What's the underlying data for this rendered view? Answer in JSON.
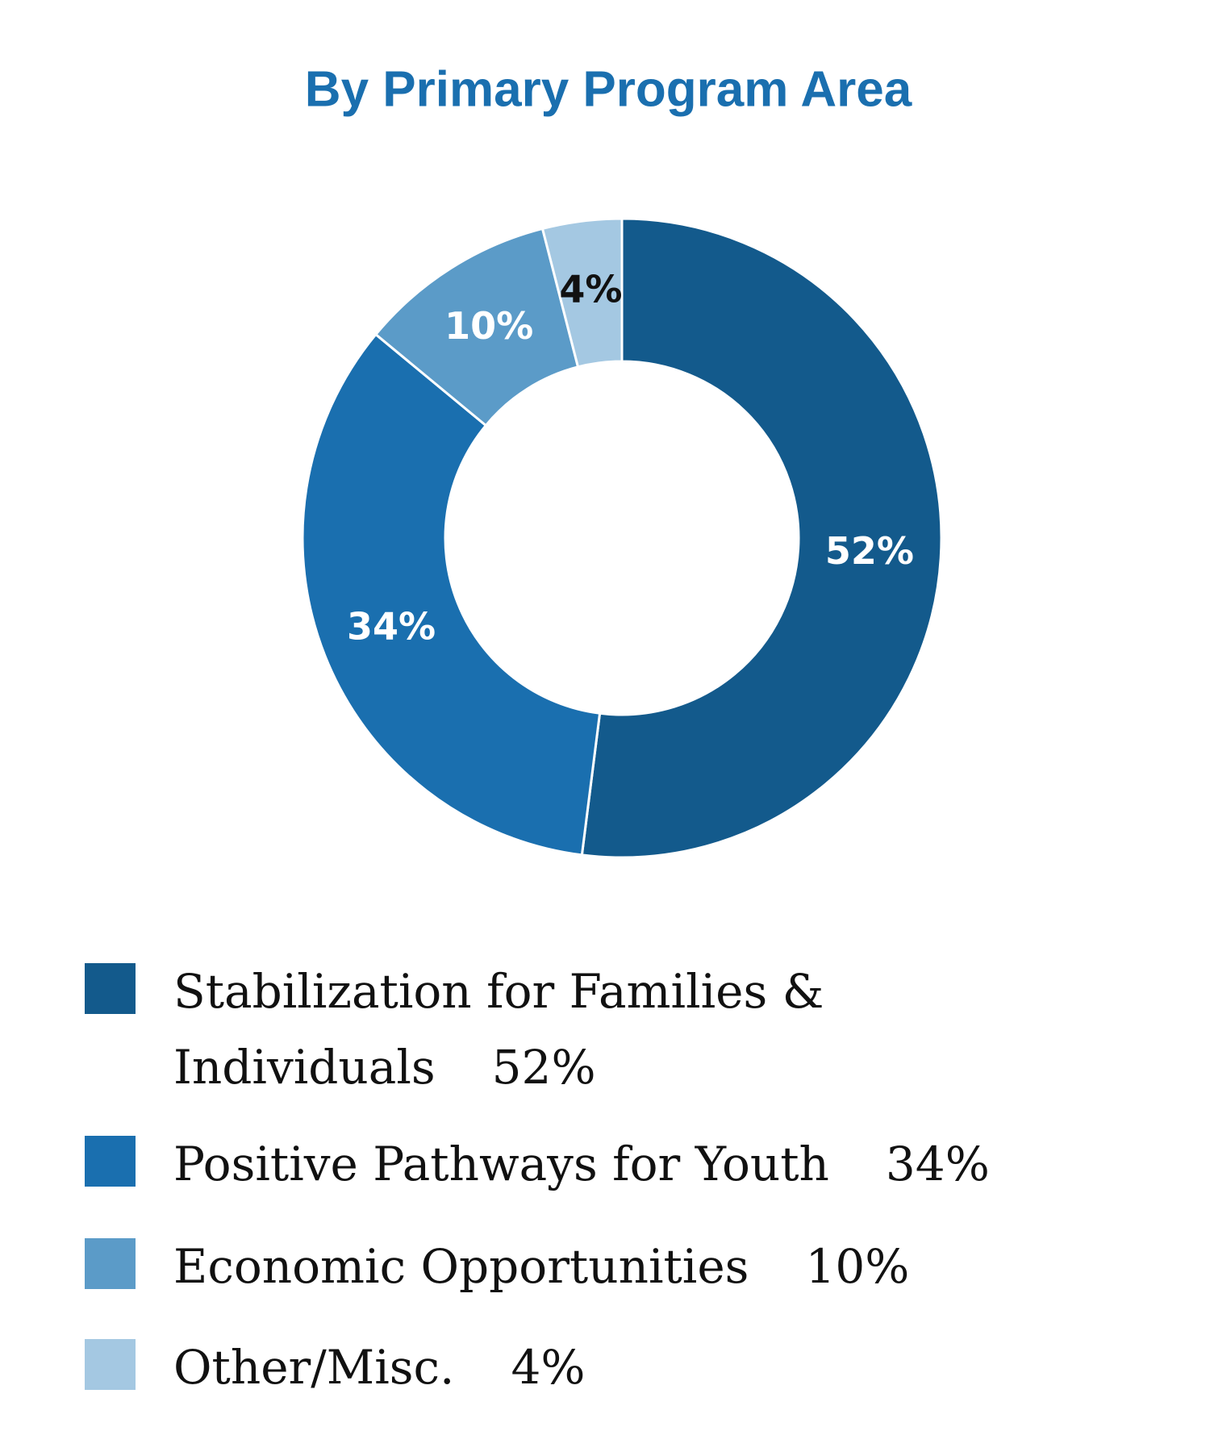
{
  "chart_data": {
    "type": "donut",
    "title": "By Primary Program Area",
    "categories": [
      "Stabilization for Families & Individuals",
      "Positive Pathways for Youth",
      "Economic Opportunities",
      "Other/Misc."
    ],
    "values": [
      52,
      34,
      10,
      4
    ],
    "value_labels": [
      "52%",
      "34%",
      "10%",
      "4%"
    ],
    "colors": [
      "#135a8c",
      "#1a6faf",
      "#5b9bc8",
      "#a4c8e2"
    ],
    "legend": "bottom"
  }
}
